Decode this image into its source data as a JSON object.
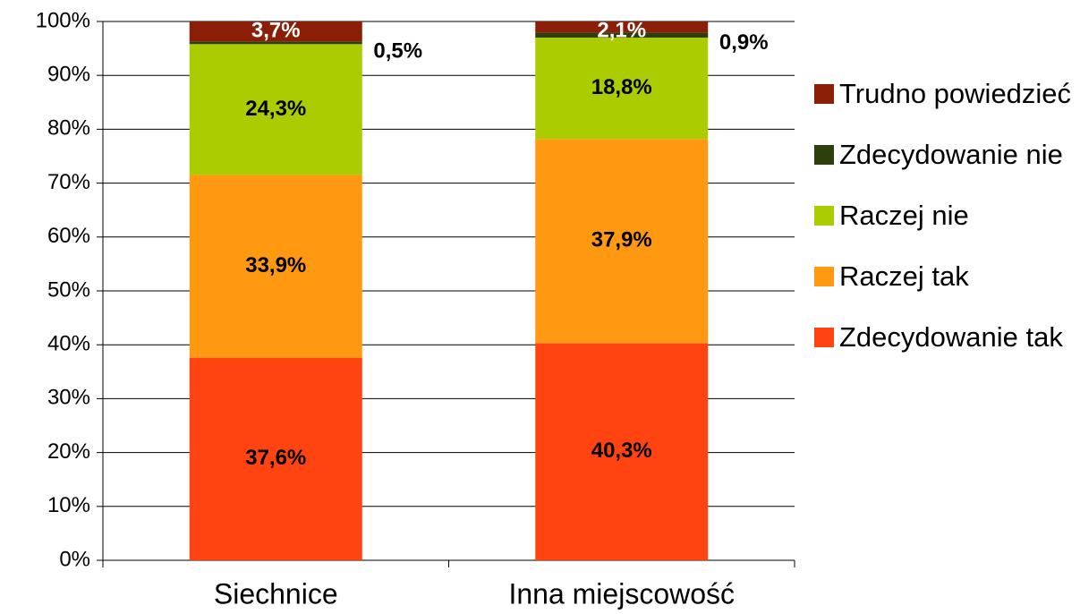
{
  "chart_data": {
    "type": "stacked_bar",
    "categories": [
      "Siechnice",
      "Inna miejscowość"
    ],
    "series": [
      {
        "name": "Zdecydowanie tak",
        "color": "#ff4411",
        "values": [
          37.6,
          40.3
        ],
        "value_labels": [
          "37,6%",
          "40,3%"
        ]
      },
      {
        "name": "Raczej tak",
        "color": "#ff9912",
        "values": [
          33.9,
          37.9
        ],
        "value_labels": [
          "33,9%",
          "37,9%"
        ]
      },
      {
        "name": "Raczej nie",
        "color": "#aacc00",
        "values": [
          24.3,
          18.8
        ],
        "value_labels": [
          "24,3%",
          "18,8%"
        ]
      },
      {
        "name": "Zdecydowanie nie",
        "color": "#2d3f0a",
        "values": [
          0.5,
          0.9
        ],
        "value_labels": [
          "0,5%",
          "0,9%"
        ]
      },
      {
        "name": "Trudno powiedzieć",
        "color": "#8b1e06",
        "values": [
          3.7,
          2.1
        ],
        "value_labels": [
          "3,7%",
          "2,1%"
        ]
      }
    ],
    "ylim": [
      0,
      100
    ],
    "yticks": [
      {
        "value": 0,
        "label": "0%"
      },
      {
        "value": 10,
        "label": "10%"
      },
      {
        "value": 20,
        "label": "20%"
      },
      {
        "value": 30,
        "label": "30%"
      },
      {
        "value": 40,
        "label": "40%"
      },
      {
        "value": 50,
        "label": "50%"
      },
      {
        "value": 60,
        "label": "60%"
      },
      {
        "value": 70,
        "label": "70%"
      },
      {
        "value": 80,
        "label": "80%"
      },
      {
        "value": 90,
        "label": "90%"
      },
      {
        "value": 100,
        "label": "100%"
      }
    ],
    "grid": true,
    "legend": "right"
  }
}
